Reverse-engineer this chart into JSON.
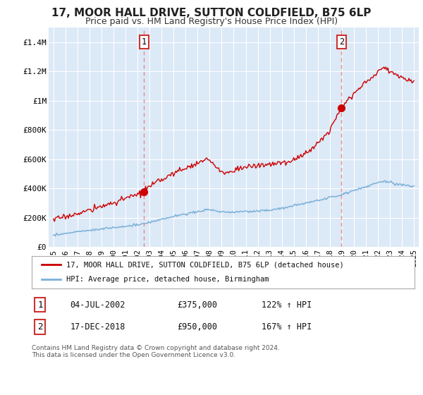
{
  "title": "17, MOOR HALL DRIVE, SUTTON COLDFIELD, B75 6LP",
  "subtitle": "Price paid vs. HM Land Registry's House Price Index (HPI)",
  "title_fontsize": 11,
  "subtitle_fontsize": 9,
  "plot_bg_color": "#dce9f7",
  "fig_bg_color": "#ffffff",
  "ylim": [
    0,
    1500000
  ],
  "yticks": [
    0,
    200000,
    400000,
    600000,
    800000,
    1000000,
    1200000,
    1400000
  ],
  "ytick_labels": [
    "£0",
    "£200K",
    "£400K",
    "£600K",
    "£800K",
    "£1M",
    "£1.2M",
    "£1.4M"
  ],
  "legend_red_label": "17, MOOR HALL DRIVE, SUTTON COLDFIELD, B75 6LP (detached house)",
  "legend_blue_label": "HPI: Average price, detached house, Birmingham",
  "annotation1_date": "04-JUL-2002",
  "annotation1_price": "£375,000",
  "annotation1_hpi": "122% ↑ HPI",
  "annotation1_year": 2002.54,
  "annotation1_value": 375000,
  "annotation2_date": "17-DEC-2018",
  "annotation2_price": "£950,000",
  "annotation2_hpi": "167% ↑ HPI",
  "annotation2_year": 2018.96,
  "annotation2_value": 950000,
  "footer": "Contains HM Land Registry data © Crown copyright and database right 2024.\nThis data is licensed under the Open Government Licence v3.0.",
  "red_color": "#cc0000",
  "blue_color": "#7ab0d8",
  "vline_color": "#ee8888",
  "grid_color": "#c8d8e8",
  "box_edge_color": "#cc3333"
}
